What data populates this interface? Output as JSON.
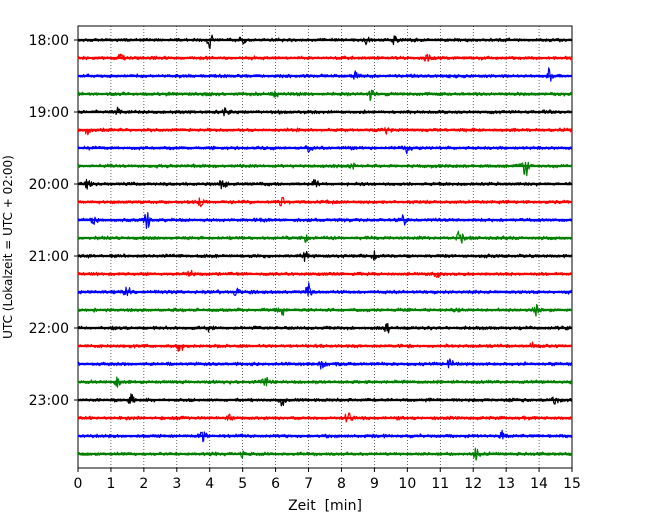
{
  "chart_data": {
    "type": "line",
    "title": "",
    "xlabel": "Zeit  [min]",
    "ylabel": "UTC (Lokalzeit = UTC + 02:00)",
    "xlim": [
      0,
      15
    ],
    "x_ticks": [
      "0",
      "1",
      "2",
      "3",
      "4",
      "5",
      "6",
      "7",
      "8",
      "9",
      "10",
      "11",
      "12",
      "13",
      "14",
      "15"
    ],
    "y_tick_labels": [
      "18:00",
      "19:00",
      "20:00",
      "21:00",
      "22:00",
      "23:00"
    ],
    "grid": "vertical dotted lines at each minute",
    "trace_interval_minutes": 15,
    "colors_cycle": [
      "#000000",
      "#ff0000",
      "#0000ff",
      "#008000"
    ],
    "traces": [
      {
        "start": "18:00",
        "color": "#000000",
        "events": [
          [
            4.0,
            0.8
          ],
          [
            5.0,
            0.45
          ],
          [
            8.8,
            0.5
          ],
          [
            9.6,
            0.55
          ]
        ]
      },
      {
        "start": "18:15",
        "color": "#ff0000",
        "events": [
          [
            1.3,
            0.4
          ],
          [
            10.6,
            0.5
          ]
        ]
      },
      {
        "start": "18:30",
        "color": "#0000ff",
        "events": [
          [
            8.4,
            0.55
          ],
          [
            14.3,
            0.75
          ]
        ]
      },
      {
        "start": "18:45",
        "color": "#008000",
        "events": [
          [
            8.9,
            0.85
          ],
          [
            6.0,
            0.35
          ]
        ]
      },
      {
        "start": "19:00",
        "color": "#000000",
        "events": [
          [
            1.2,
            0.45
          ],
          [
            4.5,
            0.5
          ]
        ]
      },
      {
        "start": "19:15",
        "color": "#ff0000",
        "events": [
          [
            0.3,
            0.5
          ],
          [
            9.4,
            0.4
          ]
        ]
      },
      {
        "start": "19:30",
        "color": "#0000ff",
        "events": [
          [
            7.0,
            0.4
          ],
          [
            10.0,
            0.5
          ]
        ]
      },
      {
        "start": "19:45",
        "color": "#008000",
        "events": [
          [
            13.6,
            1.2
          ],
          [
            8.3,
            0.4
          ]
        ]
      },
      {
        "start": "20:00",
        "color": "#000000",
        "events": [
          [
            0.3,
            0.6
          ],
          [
            4.4,
            0.6
          ],
          [
            7.2,
            0.45
          ]
        ]
      },
      {
        "start": "20:15",
        "color": "#ff0000",
        "events": [
          [
            3.7,
            0.45
          ],
          [
            6.2,
            0.4
          ]
        ]
      },
      {
        "start": "20:30",
        "color": "#0000ff",
        "events": [
          [
            0.5,
            0.55
          ],
          [
            2.1,
            0.85
          ],
          [
            9.9,
            0.5
          ]
        ]
      },
      {
        "start": "20:45",
        "color": "#008000",
        "events": [
          [
            11.6,
            0.95
          ],
          [
            6.9,
            0.4
          ]
        ]
      },
      {
        "start": "21:00",
        "color": "#000000",
        "events": [
          [
            6.9,
            0.5
          ],
          [
            9.0,
            0.45
          ]
        ]
      },
      {
        "start": "21:15",
        "color": "#ff0000",
        "events": [
          [
            10.9,
            0.55
          ],
          [
            3.4,
            0.3
          ]
        ]
      },
      {
        "start": "21:30",
        "color": "#0000ff",
        "events": [
          [
            1.5,
            0.6
          ],
          [
            7.0,
            0.95
          ],
          [
            4.8,
            0.5
          ]
        ]
      },
      {
        "start": "21:45",
        "color": "#008000",
        "events": [
          [
            6.2,
            0.5
          ],
          [
            13.9,
            0.5
          ]
        ]
      },
      {
        "start": "22:00",
        "color": "#000000",
        "events": [
          [
            9.4,
            0.45
          ],
          [
            4.0,
            0.35
          ]
        ]
      },
      {
        "start": "22:15",
        "color": "#ff0000",
        "events": [
          [
            3.1,
            0.7
          ],
          [
            13.8,
            0.4
          ]
        ]
      },
      {
        "start": "22:30",
        "color": "#0000ff",
        "events": [
          [
            7.4,
            0.6
          ],
          [
            11.3,
            0.55
          ]
        ]
      },
      {
        "start": "22:45",
        "color": "#008000",
        "events": [
          [
            1.2,
            0.5
          ],
          [
            5.7,
            0.45
          ]
        ]
      },
      {
        "start": "23:00",
        "color": "#000000",
        "events": [
          [
            1.6,
            1.0
          ],
          [
            6.2,
            0.6
          ],
          [
            14.5,
            0.5
          ]
        ]
      },
      {
        "start": "23:15",
        "color": "#ff0000",
        "events": [
          [
            8.2,
            0.6
          ],
          [
            4.6,
            0.35
          ]
        ]
      },
      {
        "start": "23:30",
        "color": "#0000ff",
        "events": [
          [
            3.8,
            0.55
          ],
          [
            12.9,
            0.6
          ]
        ]
      },
      {
        "start": "23:45",
        "color": "#008000",
        "events": [
          [
            12.1,
            0.6
          ],
          [
            5.0,
            0.35
          ]
        ]
      }
    ]
  }
}
